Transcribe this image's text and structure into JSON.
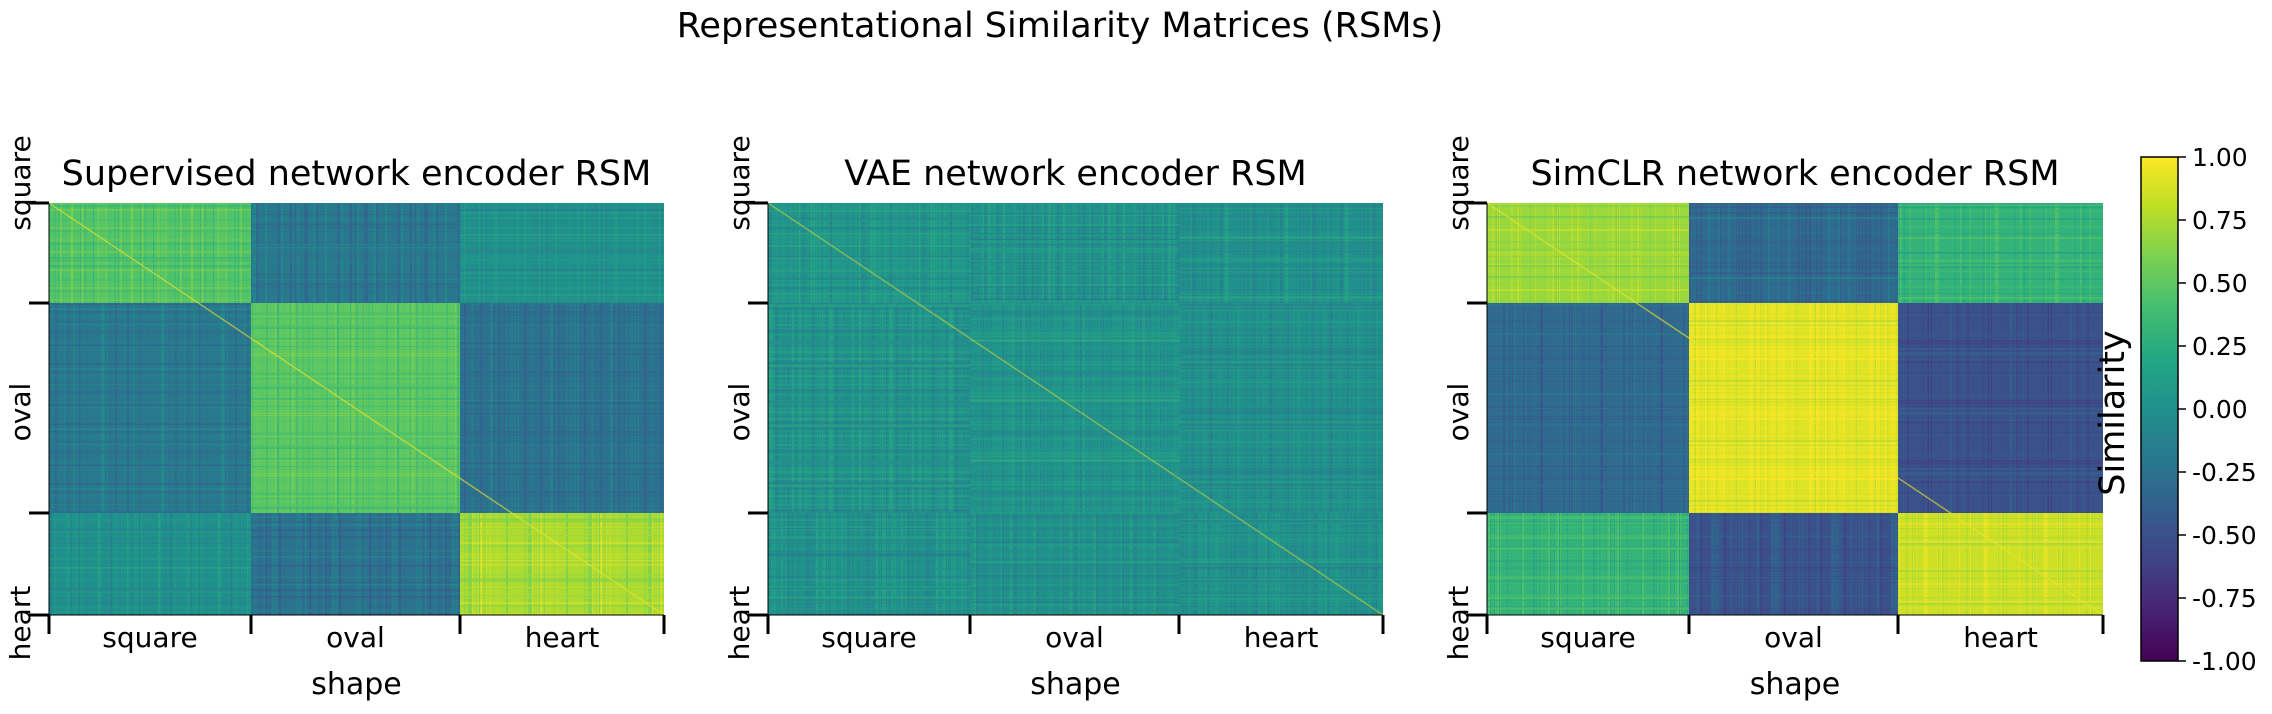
{
  "figure": {
    "suptitle": "Representational Similarity Matrices (RSMs)"
  },
  "chart_data": [
    {
      "type": "heatmap",
      "title": "Supervised network encoder RSM",
      "xlabel": "shape",
      "ylabel": "",
      "categories": [
        "square",
        "oval",
        "heart"
      ],
      "block_mean_similarity": [
        [
          0.45,
          -0.2,
          0.0
        ],
        [
          -0.2,
          0.5,
          -0.25
        ],
        [
          0.0,
          -0.25,
          0.75
        ]
      ],
      "diagonal": "high similarity along main diagonal"
    },
    {
      "type": "heatmap",
      "title": "VAE network encoder RSM",
      "xlabel": "shape",
      "ylabel": "",
      "categories": [
        "square",
        "oval",
        "heart"
      ],
      "block_mean_similarity": [
        [
          0.05,
          0.02,
          0.0
        ],
        [
          0.02,
          0.03,
          0.0
        ],
        [
          0.0,
          0.0,
          0.02
        ]
      ],
      "diagonal": "faint high similarity along main diagonal"
    },
    {
      "type": "heatmap",
      "title": "SimCLR network encoder RSM",
      "xlabel": "shape",
      "ylabel": "",
      "categories": [
        "square",
        "oval",
        "heart"
      ],
      "block_mean_similarity": [
        [
          0.7,
          -0.3,
          0.3
        ],
        [
          -0.3,
          0.9,
          -0.5
        ],
        [
          0.3,
          -0.5,
          0.85
        ]
      ],
      "diagonal": "high similarity along main diagonal"
    }
  ],
  "colorbar": {
    "label": "Similarity",
    "range": [
      -1.0,
      1.0
    ],
    "colormap": "viridis",
    "ticks": [
      "1.00",
      "0.75",
      "0.50",
      "0.25",
      "0.00",
      "-0.25",
      "-0.50",
      "-0.75",
      "-1.00"
    ]
  }
}
